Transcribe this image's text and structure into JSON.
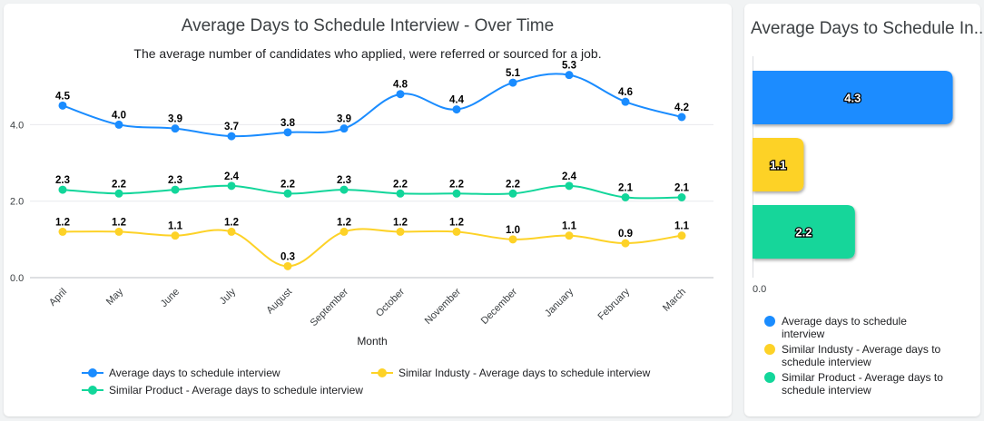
{
  "line_chart": {
    "title": "Average Days to Schedule Interview - Over Time",
    "subtitle": "The average number of candidates who applied, were referred or sourced for a job.",
    "xlabel": "Month"
  },
  "bar_chart": {
    "title": "Average Days to Schedule In...",
    "axis_zero": "0.0"
  },
  "legend": [
    {
      "label": "Average days to schedule interview",
      "color": "#1a8cff"
    },
    {
      "label": "Similar Industy - Average days to schedule interview",
      "color": "#fdd227"
    },
    {
      "label": "Similar Product - Average days to schedule interview",
      "color": "#12d69a"
    }
  ],
  "chart_data": [
    {
      "type": "line",
      "title": "Average Days to Schedule Interview - Over Time",
      "subtitle": "The average number of candidates who applied, were referred or sourced for a job.",
      "xlabel": "Month",
      "ylabel": "",
      "categories": [
        "April",
        "May",
        "June",
        "July",
        "August",
        "September",
        "October",
        "November",
        "December",
        "January",
        "February",
        "March"
      ],
      "ylim": [
        0,
        5.6
      ],
      "yticks": [
        "0.0",
        "2.0",
        "4.0"
      ],
      "grid": true,
      "legend_position": "bottom",
      "series": [
        {
          "name": "Average days to schedule interview",
          "color": "#1a8cff",
          "values": [
            4.5,
            4.0,
            3.9,
            3.7,
            3.8,
            3.9,
            4.8,
            4.4,
            5.1,
            5.3,
            4.6,
            4.2
          ],
          "labels": [
            "4.5",
            "4.0",
            "3.9",
            "3.7",
            "3.8",
            "3.9",
            "4.8",
            "4.4",
            "5.1",
            "5.3",
            "4.6",
            "4.2"
          ]
        },
        {
          "name": "Similar Industy - Average days to schedule interview",
          "color": "#fdd227",
          "values": [
            1.2,
            1.2,
            1.1,
            1.2,
            0.3,
            1.2,
            1.2,
            1.2,
            1.0,
            1.1,
            0.9,
            1.1
          ],
          "labels": [
            "1.2",
            "1.2",
            "1.1",
            "1.2",
            "0.3",
            "1.2",
            "1.2",
            "1.2",
            "1.0",
            "1.1",
            "0.9",
            "1.1"
          ]
        },
        {
          "name": "Similar Product - Average days to schedule interview",
          "color": "#12d69a",
          "values": [
            2.3,
            2.2,
            2.3,
            2.4,
            2.2,
            2.3,
            2.2,
            2.2,
            2.2,
            2.4,
            2.1,
            2.1
          ],
          "labels": [
            "2.3",
            "2.2",
            "2.3",
            "2.4",
            "2.2",
            "2.3",
            "2.2",
            "2.2",
            "2.2",
            "2.4",
            "2.1",
            "2.1"
          ]
        }
      ]
    },
    {
      "type": "bar",
      "orientation": "horizontal",
      "title": "Average Days to Schedule In...",
      "xlim": [
        0,
        4.6
      ],
      "axis_tick": "0.0",
      "legend_position": "bottom",
      "series": [
        {
          "name": "Average days to schedule interview",
          "value": 4.3,
          "label": "4.3",
          "color": "#1a8cff"
        },
        {
          "name": "Similar Industy - Average days to schedule interview",
          "value": 1.1,
          "label": "1.1",
          "color": "#fdd227"
        },
        {
          "name": "Similar Product - Average days to schedule interview",
          "value": 2.2,
          "label": "2.2",
          "color": "#12d69a"
        }
      ]
    }
  ]
}
